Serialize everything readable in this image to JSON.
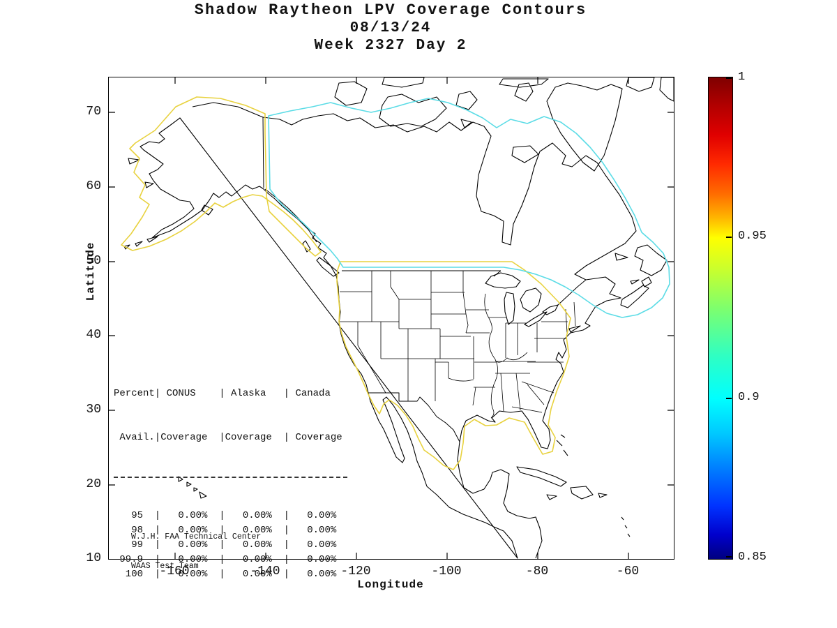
{
  "title": {
    "line1": "Shadow Raytheon LPV Coverage Contours",
    "line2": "08/13/24",
    "line3": "Week 2327 Day 2"
  },
  "axes": {
    "xlabel": "Longitude",
    "ylabel": "Latitude"
  },
  "table": {
    "header_line1": "Percent| CONUS    | Alaska   | Canada",
    "header_line2": " Avail.|Coverage  |Coverage  | Coverage"
  },
  "credit": {
    "line1": "W.J.H. FAA Technical Center",
    "line2": "WAAS Test Team"
  },
  "chart_data": {
    "type": "heatmap",
    "title": "Shadow Raytheon LPV Coverage Contours",
    "date": "08/13/24",
    "week_day": "Week 2327 Day 2",
    "xlabel": "Longitude",
    "ylabel": "Latitude",
    "xlim": [
      -175,
      -50
    ],
    "ylim": [
      10,
      75
    ],
    "x_ticks": [
      "-160",
      "-140",
      "-120",
      "-100",
      "-80",
      "-60"
    ],
    "y_ticks": [
      "70",
      "60",
      "50",
      "40",
      "30",
      "20",
      "10"
    ],
    "grid": false,
    "legend": "none",
    "colorbar": {
      "min": 0.85,
      "max": 1,
      "tick_labels": [
        "1",
        "0.95",
        "0.9",
        "0.85"
      ],
      "colormap": "jet",
      "position": "right"
    },
    "contours": {
      "conus_color": "#e8d23f",
      "alaska_color": "#e8d23f",
      "canada_color": "#5bdce6",
      "coastline_color": "#000000"
    },
    "coverage_table": {
      "columns": [
        "Percent Avail.",
        "CONUS Coverage",
        "Alaska Coverage",
        "Canada Coverage"
      ],
      "rows": [
        [
          "95",
          "0.00%",
          "0.00%",
          "0.00%"
        ],
        [
          "98",
          "0.00%",
          "0.00%",
          "0.00%"
        ],
        [
          "99",
          "0.00%",
          "0.00%",
          "0.00%"
        ],
        [
          "99.9",
          "0.00%",
          "0.00%",
          "0.00%"
        ],
        [
          "100",
          "0.00%",
          "0.00%",
          "0.00%"
        ]
      ]
    }
  }
}
